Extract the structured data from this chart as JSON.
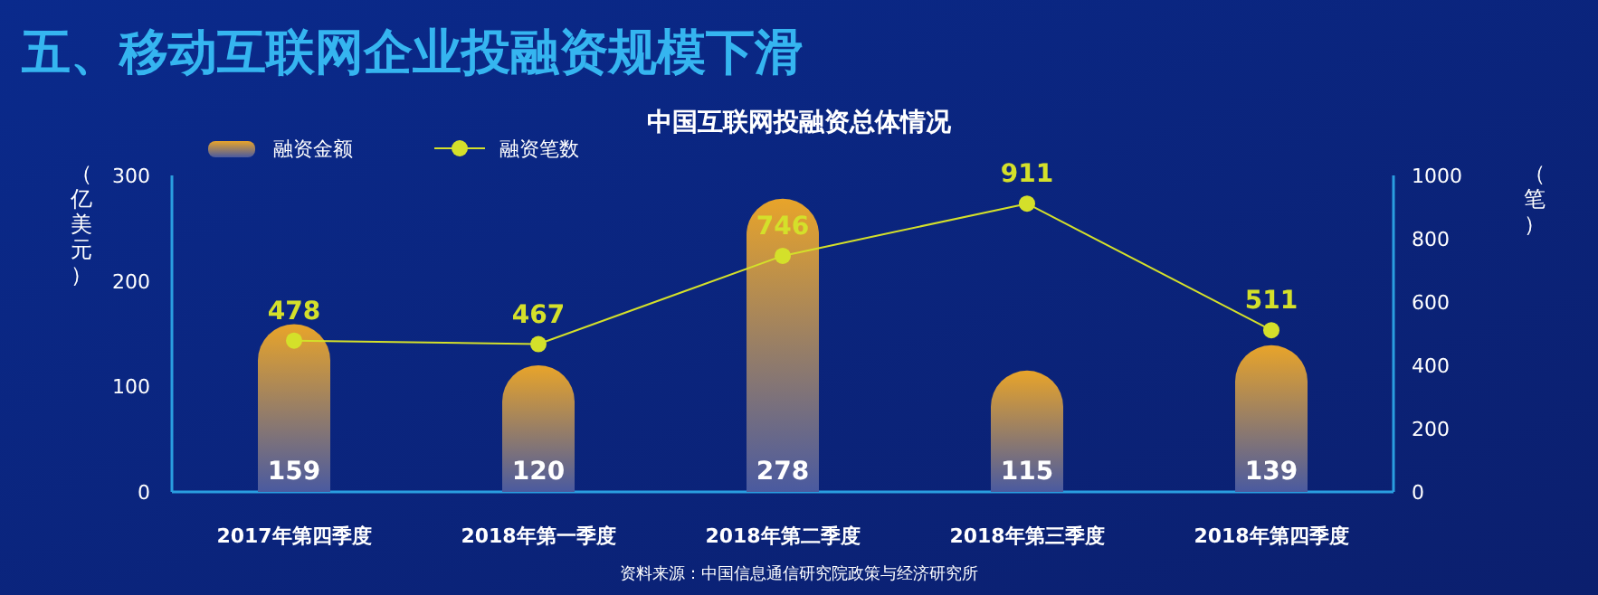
{
  "chart_data": {
    "type": "bar",
    "title": "五、移动互联网企业投融资规模下滑",
    "subtitle": "中国互联网投融资总体情况",
    "ylabel": "（亿美元）",
    "y2label": "（笔）",
    "categories": [
      "2017年第四季度",
      "2018年第一季度",
      "2018年第二季度",
      "2018年第三季度",
      "2018年第四季度"
    ],
    "series": [
      {
        "name": "融资金额",
        "color": "#e8a42a",
        "values": [
          159,
          120,
          278,
          115,
          139
        ]
      },
      {
        "name": "融资笔数",
        "type": "line",
        "axis": "y2",
        "color": "#d4e02a",
        "marker": "circle",
        "values": [
          478,
          467,
          746,
          911,
          511
        ]
      }
    ],
    "ylim": [
      0,
      300
    ],
    "yticks": [
      0,
      100,
      200,
      300
    ],
    "y2lim": [
      0,
      1000
    ],
    "y2ticks": [
      0,
      200,
      400,
      600,
      800,
      1000
    ],
    "data_labels": true,
    "legend": "top left",
    "grid": false,
    "annotations": [
      "资料来源：中国信息通信研究院政策与经济研究所"
    ]
  }
}
